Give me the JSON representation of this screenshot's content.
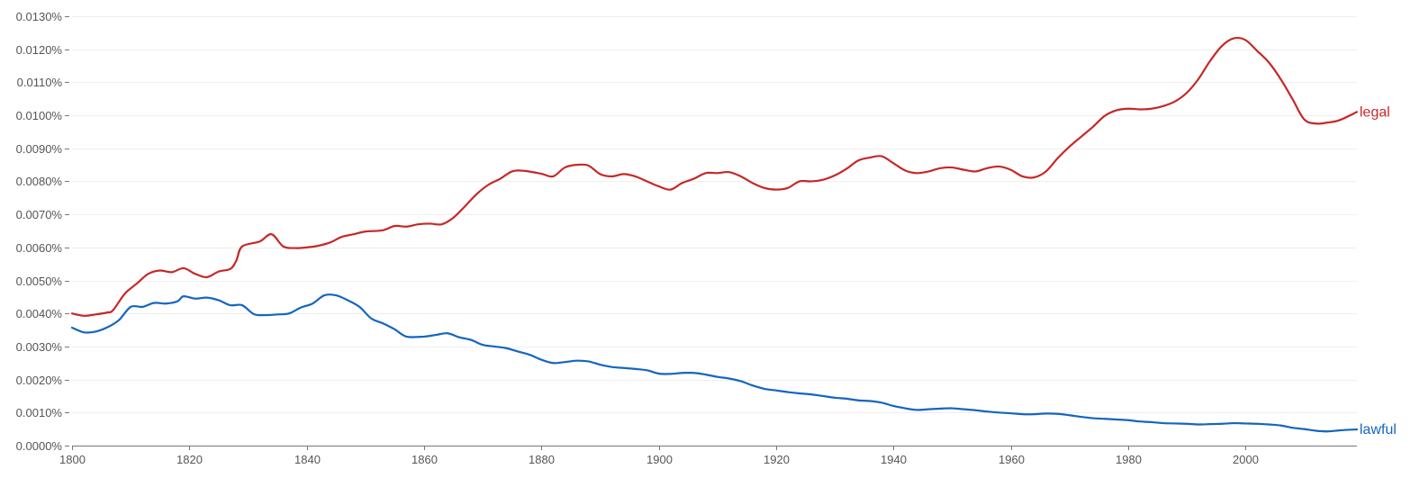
{
  "chart_data": {
    "type": "line",
    "title": "",
    "xlabel": "",
    "ylabel": "",
    "xlim": [
      1800,
      2019
    ],
    "ylim": [
      0,
      0.013
    ],
    "grid": true,
    "x_ticks": [
      1800,
      1820,
      1840,
      1860,
      1880,
      1900,
      1920,
      1940,
      1960,
      1980,
      2000
    ],
    "x_tick_labels": [
      "1800",
      "1820",
      "1840",
      "1860",
      "1880",
      "1900",
      "1920",
      "1940",
      "1960",
      "1980",
      "2000"
    ],
    "y_ticks": [
      0,
      0.001,
      0.002,
      0.003,
      0.004,
      0.005,
      0.006,
      0.007,
      0.008,
      0.009,
      0.01,
      0.011,
      0.012,
      0.013
    ],
    "y_tick_labels": [
      "0.0000%",
      "0.0010%",
      "0.0020%",
      "0.0030%",
      "0.0040%",
      "0.0050%",
      "0.0060%",
      "0.0070%",
      "0.0080%",
      "0.0090%",
      "0.0100%",
      "0.0110%",
      "0.0120%",
      "0.0130%"
    ],
    "series": [
      {
        "name": "legal",
        "color": "#c62828",
        "points": [
          [
            1800,
            0.004
          ],
          [
            1802,
            0.00393
          ],
          [
            1804,
            0.00397
          ],
          [
            1806,
            0.00403
          ],
          [
            1807,
            0.0041
          ],
          [
            1809,
            0.0046
          ],
          [
            1811,
            0.0049
          ],
          [
            1813,
            0.0052
          ],
          [
            1815,
            0.0053
          ],
          [
            1817,
            0.00525
          ],
          [
            1819,
            0.00537
          ],
          [
            1821,
            0.0052
          ],
          [
            1823,
            0.0051
          ],
          [
            1825,
            0.00527
          ],
          [
            1827,
            0.00535
          ],
          [
            1828,
            0.0056
          ],
          [
            1829,
            0.00603
          ],
          [
            1832,
            0.00618
          ],
          [
            1834,
            0.0064
          ],
          [
            1836,
            0.00603
          ],
          [
            1838,
            0.00598
          ],
          [
            1840,
            0.006
          ],
          [
            1842,
            0.00605
          ],
          [
            1844,
            0.00615
          ],
          [
            1846,
            0.00632
          ],
          [
            1848,
            0.0064
          ],
          [
            1850,
            0.00648
          ],
          [
            1853,
            0.00652
          ],
          [
            1855,
            0.00665
          ],
          [
            1857,
            0.00663
          ],
          [
            1859,
            0.0067
          ],
          [
            1861,
            0.00672
          ],
          [
            1863,
            0.0067
          ],
          [
            1865,
            0.0069
          ],
          [
            1867,
            0.00725
          ],
          [
            1869,
            0.00762
          ],
          [
            1871,
            0.0079
          ],
          [
            1873,
            0.00808
          ],
          [
            1875,
            0.0083
          ],
          [
            1877,
            0.00832
          ],
          [
            1880,
            0.00823
          ],
          [
            1882,
            0.00815
          ],
          [
            1884,
            0.00842
          ],
          [
            1886,
            0.0085
          ],
          [
            1888,
            0.00848
          ],
          [
            1890,
            0.00822
          ],
          [
            1892,
            0.00815
          ],
          [
            1894,
            0.00822
          ],
          [
            1896,
            0.00815
          ],
          [
            1898,
            0.008
          ],
          [
            1900,
            0.00785
          ],
          [
            1902,
            0.00775
          ],
          [
            1904,
            0.00795
          ],
          [
            1906,
            0.00808
          ],
          [
            1908,
            0.00825
          ],
          [
            1910,
            0.00825
          ],
          [
            1912,
            0.00828
          ],
          [
            1914,
            0.00815
          ],
          [
            1916,
            0.00795
          ],
          [
            1918,
            0.0078
          ],
          [
            1920,
            0.00775
          ],
          [
            1922,
            0.0078
          ],
          [
            1924,
            0.008
          ],
          [
            1926,
            0.008
          ],
          [
            1928,
            0.00805
          ],
          [
            1930,
            0.00818
          ],
          [
            1932,
            0.00838
          ],
          [
            1934,
            0.00863
          ],
          [
            1936,
            0.00872
          ],
          [
            1938,
            0.00876
          ],
          [
            1940,
            0.00855
          ],
          [
            1942,
            0.00833
          ],
          [
            1944,
            0.00825
          ],
          [
            1946,
            0.0083
          ],
          [
            1948,
            0.0084
          ],
          [
            1950,
            0.00842
          ],
          [
            1952,
            0.00835
          ],
          [
            1954,
            0.0083
          ],
          [
            1956,
            0.0084
          ],
          [
            1958,
            0.00845
          ],
          [
            1960,
            0.00835
          ],
          [
            1962,
            0.00815
          ],
          [
            1964,
            0.00812
          ],
          [
            1966,
            0.0083
          ],
          [
            1968,
            0.0087
          ],
          [
            1970,
            0.00905
          ],
          [
            1972,
            0.00935
          ],
          [
            1974,
            0.00965
          ],
          [
            1976,
            0.00998
          ],
          [
            1978,
            0.01015
          ],
          [
            1980,
            0.0102
          ],
          [
            1982,
            0.01018
          ],
          [
            1984,
            0.0102
          ],
          [
            1986,
            0.01028
          ],
          [
            1988,
            0.01042
          ],
          [
            1990,
            0.01068
          ],
          [
            1992,
            0.0111
          ],
          [
            1994,
            0.01165
          ],
          [
            1996,
            0.0121
          ],
          [
            1998,
            0.01233
          ],
          [
            2000,
            0.01228
          ],
          [
            2002,
            0.01195
          ],
          [
            2004,
            0.0116
          ],
          [
            2006,
            0.0111
          ],
          [
            2008,
            0.0105
          ],
          [
            2010,
            0.00988
          ],
          [
            2012,
            0.00975
          ],
          [
            2014,
            0.00978
          ],
          [
            2016,
            0.00985
          ],
          [
            2019,
            0.0101
          ]
        ]
      },
      {
        "name": "lawful",
        "color": "#1565c0",
        "points": [
          [
            1800,
            0.00357
          ],
          [
            1802,
            0.00343
          ],
          [
            1804,
            0.00345
          ],
          [
            1806,
            0.00358
          ],
          [
            1808,
            0.0038
          ],
          [
            1810,
            0.0042
          ],
          [
            1812,
            0.0042
          ],
          [
            1814,
            0.00432
          ],
          [
            1816,
            0.0043
          ],
          [
            1818,
            0.00437
          ],
          [
            1819,
            0.00452
          ],
          [
            1821,
            0.00445
          ],
          [
            1823,
            0.00448
          ],
          [
            1825,
            0.0044
          ],
          [
            1827,
            0.00425
          ],
          [
            1829,
            0.00425
          ],
          [
            1831,
            0.00398
          ],
          [
            1833,
            0.00395
          ],
          [
            1835,
            0.00397
          ],
          [
            1837,
            0.004
          ],
          [
            1839,
            0.00418
          ],
          [
            1841,
            0.0043
          ],
          [
            1843,
            0.00455
          ],
          [
            1845,
            0.00455
          ],
          [
            1847,
            0.0044
          ],
          [
            1849,
            0.0042
          ],
          [
            1851,
            0.00385
          ],
          [
            1853,
            0.0037
          ],
          [
            1855,
            0.00352
          ],
          [
            1857,
            0.0033
          ],
          [
            1860,
            0.0033
          ],
          [
            1862,
            0.00335
          ],
          [
            1864,
            0.0034
          ],
          [
            1866,
            0.00328
          ],
          [
            1868,
            0.0032
          ],
          [
            1870,
            0.00305
          ],
          [
            1872,
            0.003
          ],
          [
            1874,
            0.00295
          ],
          [
            1876,
            0.00285
          ],
          [
            1878,
            0.00275
          ],
          [
            1880,
            0.0026
          ],
          [
            1882,
            0.0025
          ],
          [
            1884,
            0.00253
          ],
          [
            1886,
            0.00257
          ],
          [
            1888,
            0.00255
          ],
          [
            1890,
            0.00245
          ],
          [
            1892,
            0.00238
          ],
          [
            1894,
            0.00235
          ],
          [
            1896,
            0.00232
          ],
          [
            1898,
            0.00228
          ],
          [
            1900,
            0.00218
          ],
          [
            1902,
            0.00217
          ],
          [
            1904,
            0.0022
          ],
          [
            1906,
            0.0022
          ],
          [
            1908,
            0.00215
          ],
          [
            1910,
            0.00208
          ],
          [
            1912,
            0.00203
          ],
          [
            1914,
            0.00195
          ],
          [
            1916,
            0.00182
          ],
          [
            1918,
            0.00172
          ],
          [
            1920,
            0.00167
          ],
          [
            1922,
            0.00162
          ],
          [
            1924,
            0.00158
          ],
          [
            1926,
            0.00155
          ],
          [
            1928,
            0.0015
          ],
          [
            1930,
            0.00145
          ],
          [
            1932,
            0.00142
          ],
          [
            1934,
            0.00137
          ],
          [
            1936,
            0.00135
          ],
          [
            1938,
            0.0013
          ],
          [
            1940,
            0.0012
          ],
          [
            1942,
            0.00113
          ],
          [
            1944,
            0.00108
          ],
          [
            1946,
            0.0011
          ],
          [
            1948,
            0.00112
          ],
          [
            1950,
            0.00113
          ],
          [
            1952,
            0.0011
          ],
          [
            1954,
            0.00107
          ],
          [
            1956,
            0.00103
          ],
          [
            1958,
            0.001
          ],
          [
            1960,
            0.00098
          ],
          [
            1962,
            0.00095
          ],
          [
            1964,
            0.00095
          ],
          [
            1966,
            0.00097
          ],
          [
            1968,
            0.00096
          ],
          [
            1970,
            0.00092
          ],
          [
            1972,
            0.00087
          ],
          [
            1974,
            0.00083
          ],
          [
            1976,
            0.00081
          ],
          [
            1978,
            0.00079
          ],
          [
            1980,
            0.00077
          ],
          [
            1982,
            0.00073
          ],
          [
            1984,
            0.00071
          ],
          [
            1986,
            0.00068
          ],
          [
            1988,
            0.00067
          ],
          [
            1990,
            0.00066
          ],
          [
            1992,
            0.00064
          ],
          [
            1994,
            0.00065
          ],
          [
            1996,
            0.00066
          ],
          [
            1998,
            0.00068
          ],
          [
            2000,
            0.00067
          ],
          [
            2002,
            0.00066
          ],
          [
            2004,
            0.00064
          ],
          [
            2006,
            0.00061
          ],
          [
            2008,
            0.00054
          ],
          [
            2010,
            0.0005
          ],
          [
            2012,
            0.00045
          ],
          [
            2014,
            0.00043
          ],
          [
            2016,
            0.00046
          ],
          [
            2019,
            0.00049
          ]
        ]
      }
    ]
  }
}
